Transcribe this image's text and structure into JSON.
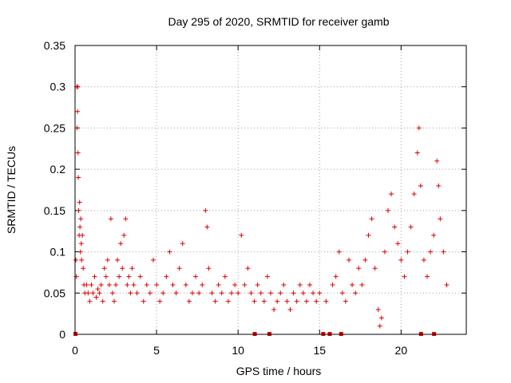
{
  "chart_data": {
    "type": "scatter",
    "title": "Day 295 of 2020, SRMTID for receiver gamb",
    "xlabel": "GPS time / hours",
    "ylabel": "SRMTID / TECUs",
    "xlim": [
      0,
      24
    ],
    "ylim": [
      0,
      0.35
    ],
    "xticks": [
      0,
      5,
      10,
      15,
      20
    ],
    "xtick_labels": [
      "0",
      "5",
      "10",
      "15",
      "20"
    ],
    "yticks": [
      0,
      0.05,
      0.1,
      0.15,
      0.2,
      0.25,
      0.3,
      0.35
    ],
    "ytick_labels": [
      "0",
      "0.05",
      "0.1",
      "0.15",
      "0.2",
      "0.25",
      "0.3",
      "0.35"
    ],
    "grid": true,
    "marker": "+",
    "color": "#e00000",
    "edge_markers_x": [
      0.0,
      11.0,
      11.9,
      15.2,
      15.6,
      16.3,
      21.2,
      22.0
    ],
    "series": [
      {
        "name": "SRMTID",
        "points": [
          [
            0.05,
            0.09
          ],
          [
            0.08,
            0.07
          ],
          [
            0.1,
            0.3
          ],
          [
            0.12,
            0.25
          ],
          [
            0.15,
            0.27
          ],
          [
            0.17,
            0.3
          ],
          [
            0.18,
            0.22
          ],
          [
            0.2,
            0.19
          ],
          [
            0.22,
            0.15
          ],
          [
            0.25,
            0.12
          ],
          [
            0.28,
            0.16
          ],
          [
            0.3,
            0.13
          ],
          [
            0.33,
            0.1
          ],
          [
            0.35,
            0.14
          ],
          [
            0.38,
            0.11
          ],
          [
            0.4,
            0.09
          ],
          [
            0.45,
            0.12
          ],
          [
            0.5,
            0.08
          ],
          [
            0.55,
            0.06
          ],
          [
            0.6,
            0.05
          ],
          [
            0.7,
            0.06
          ],
          [
            0.8,
            0.05
          ],
          [
            0.9,
            0.04
          ],
          [
            1.0,
            0.06
          ],
          [
            1.1,
            0.05
          ],
          [
            1.2,
            0.07
          ],
          [
            1.3,
            0.045
          ],
          [
            1.4,
            0.055
          ],
          [
            1.5,
            0.05
          ],
          [
            1.6,
            0.06
          ],
          [
            1.7,
            0.04
          ],
          [
            1.8,
            0.08
          ],
          [
            1.9,
            0.07
          ],
          [
            2.0,
            0.09
          ],
          [
            2.1,
            0.06
          ],
          [
            2.2,
            0.14
          ],
          [
            2.3,
            0.05
          ],
          [
            2.4,
            0.04
          ],
          [
            2.5,
            0.06
          ],
          [
            2.6,
            0.09
          ],
          [
            2.7,
            0.07
          ],
          [
            2.8,
            0.11
          ],
          [
            2.9,
            0.08
          ],
          [
            3.0,
            0.12
          ],
          [
            3.1,
            0.14
          ],
          [
            3.2,
            0.06
          ],
          [
            3.3,
            0.07
          ],
          [
            3.4,
            0.05
          ],
          [
            3.5,
            0.08
          ],
          [
            3.6,
            0.06
          ],
          [
            3.8,
            0.05
          ],
          [
            4.0,
            0.07
          ],
          [
            4.2,
            0.04
          ],
          [
            4.4,
            0.06
          ],
          [
            4.6,
            0.05
          ],
          [
            4.8,
            0.09
          ],
          [
            5.0,
            0.06
          ],
          [
            5.2,
            0.04
          ],
          [
            5.4,
            0.05
          ],
          [
            5.6,
            0.07
          ],
          [
            5.8,
            0.1
          ],
          [
            6.0,
            0.06
          ],
          [
            6.2,
            0.05
          ],
          [
            6.4,
            0.08
          ],
          [
            6.6,
            0.11
          ],
          [
            6.8,
            0.06
          ],
          [
            7.0,
            0.04
          ],
          [
            7.2,
            0.05
          ],
          [
            7.4,
            0.07
          ],
          [
            7.6,
            0.05
          ],
          [
            7.8,
            0.06
          ],
          [
            8.0,
            0.15
          ],
          [
            8.1,
            0.13
          ],
          [
            8.2,
            0.08
          ],
          [
            8.4,
            0.05
          ],
          [
            8.6,
            0.04
          ],
          [
            8.8,
            0.06
          ],
          [
            9.0,
            0.05
          ],
          [
            9.2,
            0.07
          ],
          [
            9.4,
            0.04
          ],
          [
            9.6,
            0.05
          ],
          [
            9.8,
            0.06
          ],
          [
            10.0,
            0.05
          ],
          [
            10.2,
            0.12
          ],
          [
            10.4,
            0.06
          ],
          [
            10.6,
            0.08
          ],
          [
            10.8,
            0.05
          ],
          [
            11.0,
            0.04
          ],
          [
            11.2,
            0.06
          ],
          [
            11.4,
            0.05
          ],
          [
            11.6,
            0.04
          ],
          [
            11.8,
            0.07
          ],
          [
            12.0,
            0.05
          ],
          [
            12.2,
            0.03
          ],
          [
            12.4,
            0.04
          ],
          [
            12.6,
            0.05
          ],
          [
            12.8,
            0.06
          ],
          [
            13.0,
            0.04
          ],
          [
            13.2,
            0.03
          ],
          [
            13.4,
            0.05
          ],
          [
            13.6,
            0.04
          ],
          [
            13.8,
            0.06
          ],
          [
            14.0,
            0.05
          ],
          [
            14.2,
            0.04
          ],
          [
            14.4,
            0.06
          ],
          [
            14.6,
            0.05
          ],
          [
            14.8,
            0.04
          ],
          [
            15.0,
            0.05
          ],
          [
            15.4,
            0.04
          ],
          [
            15.8,
            0.06
          ],
          [
            16.0,
            0.07
          ],
          [
            16.2,
            0.1
          ],
          [
            16.4,
            0.05
          ],
          [
            16.6,
            0.04
          ],
          [
            16.8,
            0.09
          ],
          [
            17.0,
            0.06
          ],
          [
            17.2,
            0.05
          ],
          [
            17.4,
            0.08
          ],
          [
            17.6,
            0.06
          ],
          [
            17.8,
            0.09
          ],
          [
            18.0,
            0.12
          ],
          [
            18.2,
            0.14
          ],
          [
            18.4,
            0.08
          ],
          [
            18.6,
            0.03
          ],
          [
            18.7,
            0.01
          ],
          [
            18.8,
            0.02
          ],
          [
            19.0,
            0.1
          ],
          [
            19.2,
            0.15
          ],
          [
            19.4,
            0.17
          ],
          [
            19.6,
            0.13
          ],
          [
            19.8,
            0.11
          ],
          [
            20.0,
            0.09
          ],
          [
            20.2,
            0.07
          ],
          [
            20.4,
            0.1
          ],
          [
            20.6,
            0.13
          ],
          [
            20.8,
            0.17
          ],
          [
            21.0,
            0.22
          ],
          [
            21.1,
            0.25
          ],
          [
            21.2,
            0.18
          ],
          [
            21.4,
            0.09
          ],
          [
            21.6,
            0.07
          ],
          [
            21.8,
            0.1
          ],
          [
            22.0,
            0.12
          ],
          [
            22.2,
            0.21
          ],
          [
            22.3,
            0.18
          ],
          [
            22.4,
            0.14
          ],
          [
            22.6,
            0.1
          ],
          [
            22.8,
            0.06
          ]
        ]
      }
    ]
  }
}
